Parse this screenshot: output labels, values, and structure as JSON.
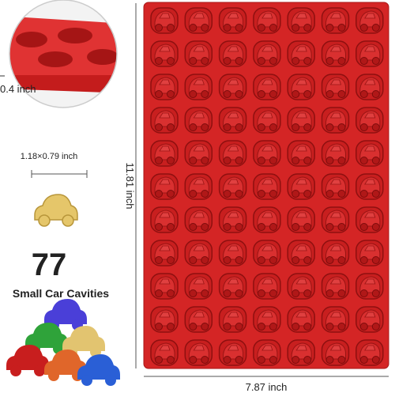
{
  "inset": {
    "depth_label": "0.4 inch"
  },
  "piece": {
    "size_label": "1.18×0.79 inch"
  },
  "count": {
    "number": "77",
    "caption": "Small Car Cavities"
  },
  "mold": {
    "height_label": "11.81 inch",
    "width_label": "7.87 inch"
  }
}
